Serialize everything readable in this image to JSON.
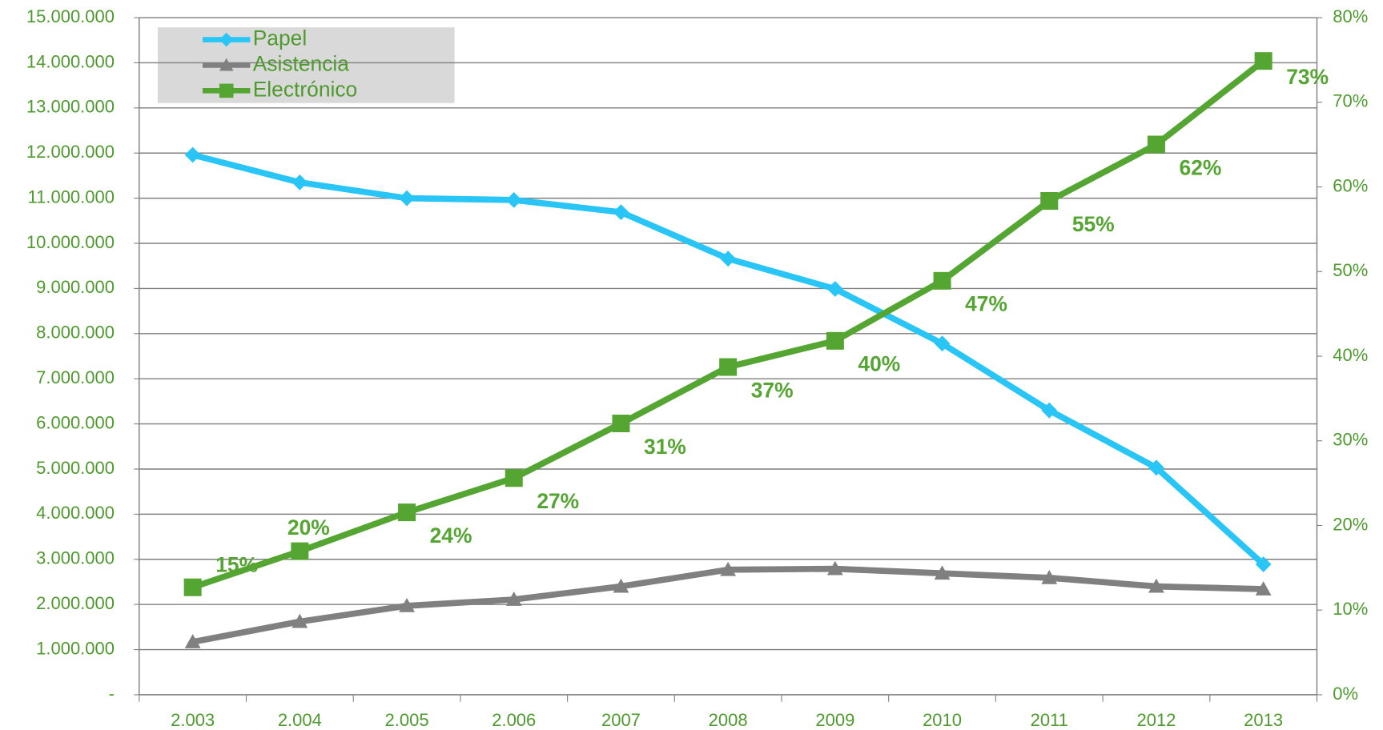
{
  "chart_data": {
    "type": "line",
    "categories": [
      "2.003",
      "2.004",
      "2.005",
      "2.006",
      "2007",
      "2008",
      "2009",
      "2010",
      "2011",
      "2012",
      "2013"
    ],
    "series": [
      {
        "name": "Papel",
        "color": "#29c5f6",
        "marker": "diamond",
        "values": [
          11960000,
          11350000,
          11000000,
          10960000,
          10690000,
          9660000,
          8990000,
          7780000,
          6300000,
          5030000,
          2890000
        ]
      },
      {
        "name": "Asistencia",
        "color": "#808080",
        "marker": "triangle",
        "values": [
          1170000,
          1620000,
          1970000,
          2110000,
          2400000,
          2770000,
          2790000,
          2690000,
          2590000,
          2400000,
          2340000
        ]
      },
      {
        "name": "Electrónico",
        "color": "#55a532",
        "marker": "square",
        "values": [
          2380000,
          3180000,
          4040000,
          4800000,
          6010000,
          7260000,
          7840000,
          9170000,
          10940000,
          12190000,
          14040000
        ]
      }
    ],
    "annotations": [
      "15%",
      "20%",
      "24%",
      "27%",
      "31%",
      "37%",
      "40%",
      "47%",
      "55%",
      "62%",
      "73%"
    ],
    "ylim": [
      0,
      15000000
    ],
    "yticks": [
      {
        "value": 0,
        "label": "-"
      },
      {
        "value": 1000000,
        "label": "1.000.000"
      },
      {
        "value": 2000000,
        "label": "2.000.000"
      },
      {
        "value": 3000000,
        "label": "3.000.000"
      },
      {
        "value": 4000000,
        "label": "4.000.000"
      },
      {
        "value": 5000000,
        "label": "5.000.000"
      },
      {
        "value": 6000000,
        "label": "6.000.000"
      },
      {
        "value": 7000000,
        "label": "7.000.000"
      },
      {
        "value": 8000000,
        "label": "8.000.000"
      },
      {
        "value": 9000000,
        "label": "9.000.000"
      },
      {
        "value": 10000000,
        "label": "10.000.000"
      },
      {
        "value": 11000000,
        "label": "11.000.000"
      },
      {
        "value": 12000000,
        "label": "12.000.000"
      },
      {
        "value": 13000000,
        "label": "13.000.000"
      },
      {
        "value": 14000000,
        "label": "14.000.000"
      },
      {
        "value": 15000000,
        "label": "15.000.000"
      }
    ],
    "y2lim": [
      0,
      80
    ],
    "y2ticks": [
      {
        "value": 0,
        "label": "0%"
      },
      {
        "value": 10,
        "label": "10%"
      },
      {
        "value": 20,
        "label": "20%"
      },
      {
        "value": 30,
        "label": "30%"
      },
      {
        "value": 40,
        "label": "40%"
      },
      {
        "value": 50,
        "label": "50%"
      },
      {
        "value": 60,
        "label": "60%"
      },
      {
        "value": 70,
        "label": "70%"
      },
      {
        "value": 80,
        "label": "80%"
      }
    ],
    "grid": true,
    "legend": "top-left"
  }
}
